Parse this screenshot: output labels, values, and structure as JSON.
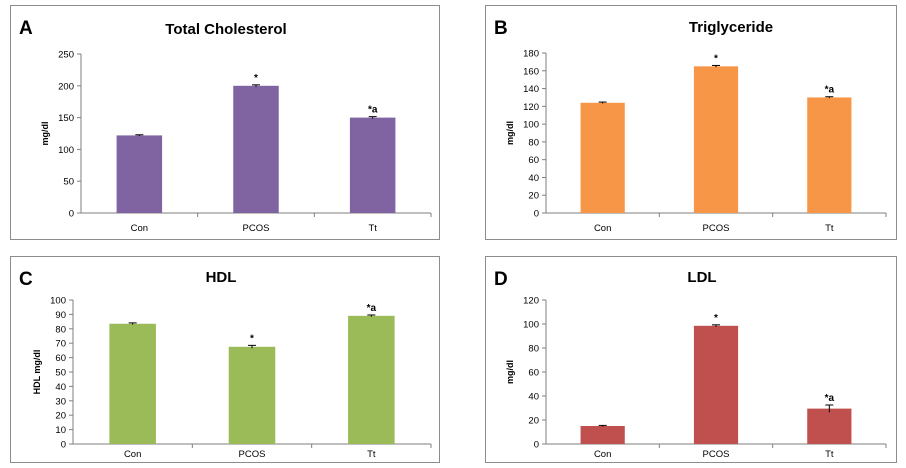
{
  "chart_data": [
    {
      "type": "bar",
      "panel_letter": "A",
      "title": "Total Cholesterol",
      "ylabel": "mg/dl",
      "categories": [
        "Con",
        "PCOS",
        "Tt"
      ],
      "values": [
        122,
        200,
        150
      ],
      "errors": [
        1,
        1.5,
        1.5
      ],
      "annotations": [
        "",
        "*",
        "*a"
      ],
      "ylim": [
        0,
        250
      ],
      "yticks": [
        0,
        50,
        100,
        150,
        200,
        250
      ],
      "color": "#8064a2",
      "grid": false
    },
    {
      "type": "bar",
      "panel_letter": "B",
      "title": "Triglyceride",
      "ylabel": "mg/dl",
      "categories": [
        "Con",
        "PCOS",
        "Tt"
      ],
      "values": [
        124,
        165,
        130
      ],
      "errors": [
        0.8,
        1,
        0.8
      ],
      "annotations": [
        "",
        "*",
        "*a"
      ],
      "ylim": [
        0,
        180
      ],
      "yticks": [
        0,
        20,
        40,
        60,
        80,
        100,
        120,
        140,
        160,
        180
      ],
      "color": "#f79646",
      "grid": false
    },
    {
      "type": "bar",
      "panel_letter": "C",
      "title": "HDL",
      "ylabel": "HDL mg/dl",
      "categories": [
        "Con",
        "PCOS",
        "Tt"
      ],
      "values": [
        83.5,
        67.5,
        89
      ],
      "errors": [
        0.6,
        1,
        0.6
      ],
      "annotations": [
        "",
        "*",
        "*a"
      ],
      "ylim": [
        0,
        100
      ],
      "yticks": [
        0,
        10,
        20,
        30,
        40,
        50,
        60,
        70,
        80,
        90,
        100
      ],
      "color": "#9bbb59",
      "grid": false
    },
    {
      "type": "bar",
      "panel_letter": "D",
      "title": "LDL",
      "ylabel": "mg/dl",
      "categories": [
        "Con",
        "PCOS",
        "Tt"
      ],
      "values": [
        15,
        98.5,
        29.5
      ],
      "errors": [
        0.5,
        0.8,
        3
      ],
      "annotations": [
        "",
        "*",
        "*a"
      ],
      "ylim": [
        0,
        120
      ],
      "yticks": [
        0,
        20,
        40,
        60,
        80,
        100,
        120
      ],
      "color": "#c0504d",
      "grid": false
    }
  ]
}
